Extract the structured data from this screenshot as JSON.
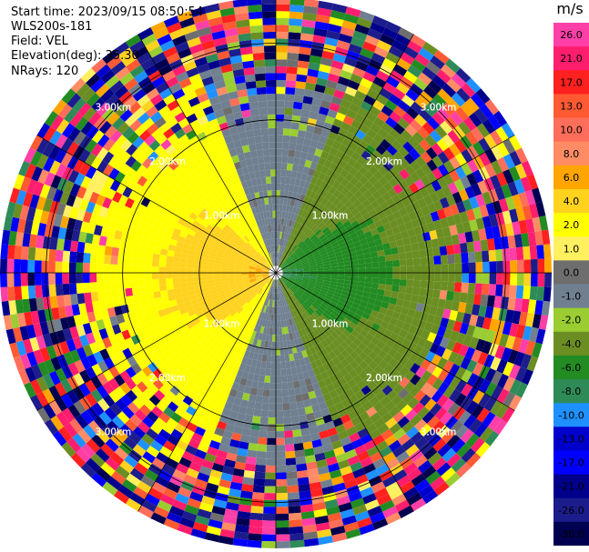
{
  "header": {
    "start_time": "Start time: 2023/09/15 08:50:54",
    "instrument": "WLS200s-181",
    "field": "Field: VEL",
    "elevation": "Elevation(deg): 35.30",
    "nrays": "NRays: 120"
  },
  "colorbar": {
    "unit": "m/s",
    "labels": [
      "26.0",
      "21.0",
      "17.0",
      "13.0",
      "10.0",
      "8.0",
      "6.0",
      "4.0",
      "2.0",
      "1.0",
      "0.0",
      "-1.0",
      "-2.0",
      "-4.0",
      "-6.0",
      "-8.0",
      "-10.0",
      "-13.0",
      "-17.0",
      "-21.0",
      "-26.0",
      "-30.0"
    ],
    "colors": [
      "#ff3fa8",
      "#ff1e6e",
      "#ff2020",
      "#ff5a32",
      "#ff6e5a",
      "#ff8c64",
      "#ffa500",
      "#ffd21e",
      "#ffff00",
      "#fff060",
      "#6e6e6e",
      "#708090",
      "#9acd32",
      "#6b8e23",
      "#228b22",
      "#2e8b57",
      "#1e90ff",
      "#0000cd",
      "#0000ff",
      "#00008b",
      "#1c1c8c",
      "#000050"
    ]
  },
  "chart_data": {
    "type": "heatmap",
    "title": "",
    "field": "VEL",
    "units": "m/s",
    "projection": "polar (PPI)",
    "nrays": 120,
    "range_rings_km": [
      1.0,
      2.0,
      3.0
    ],
    "ring_labels": [
      "1.00km",
      "2.00km",
      "3.00km"
    ],
    "max_range_km": 3.6,
    "color_levels": [
      -30,
      -26,
      -21,
      -17,
      -13,
      -10,
      -8,
      -6,
      -4,
      -2,
      -1,
      0,
      1,
      2,
      4,
      6,
      8,
      10,
      13,
      17,
      21,
      26
    ],
    "pattern": {
      "west_sector_velocity_ms": [
        2.0,
        6.0
      ],
      "east_sector_velocity_ms": [
        -6.0,
        -2.0
      ],
      "north_south_velocity_ms": [
        -1.0,
        0.0
      ],
      "noise_beyond_range_km": 2.4
    }
  }
}
